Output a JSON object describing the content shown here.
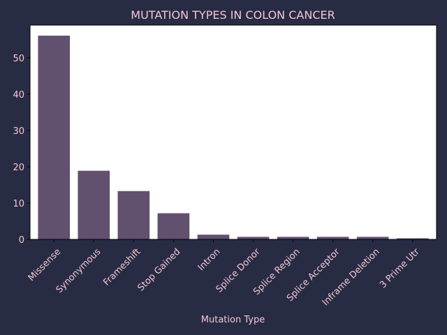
{
  "colors": {
    "background": "#272b43",
    "plot_background": "#ffffff",
    "bar": "#62506f",
    "text": "#f3c7d5",
    "axis": "#000000"
  },
  "chart_data": {
    "type": "bar",
    "title": "MUTATION TYPES IN COLON CANCER",
    "xlabel": "Mutation Type",
    "ylabel": "",
    "categories": [
      "Missense",
      "Synonymous",
      "Frameshift",
      "Stop Gained",
      "Intron",
      "Splice Donor",
      "Splice Region",
      "Splice Acceptor",
      "Inframe Deletion",
      "3 Prime Utr"
    ],
    "values": [
      56.1,
      18.9,
      13.3,
      7.2,
      1.3,
      0.7,
      0.7,
      0.7,
      0.7,
      0.3
    ],
    "ylim": [
      0,
      59
    ],
    "yticks": [
      0,
      10,
      20,
      30,
      40,
      50
    ],
    "grid": false,
    "legend": false
  }
}
